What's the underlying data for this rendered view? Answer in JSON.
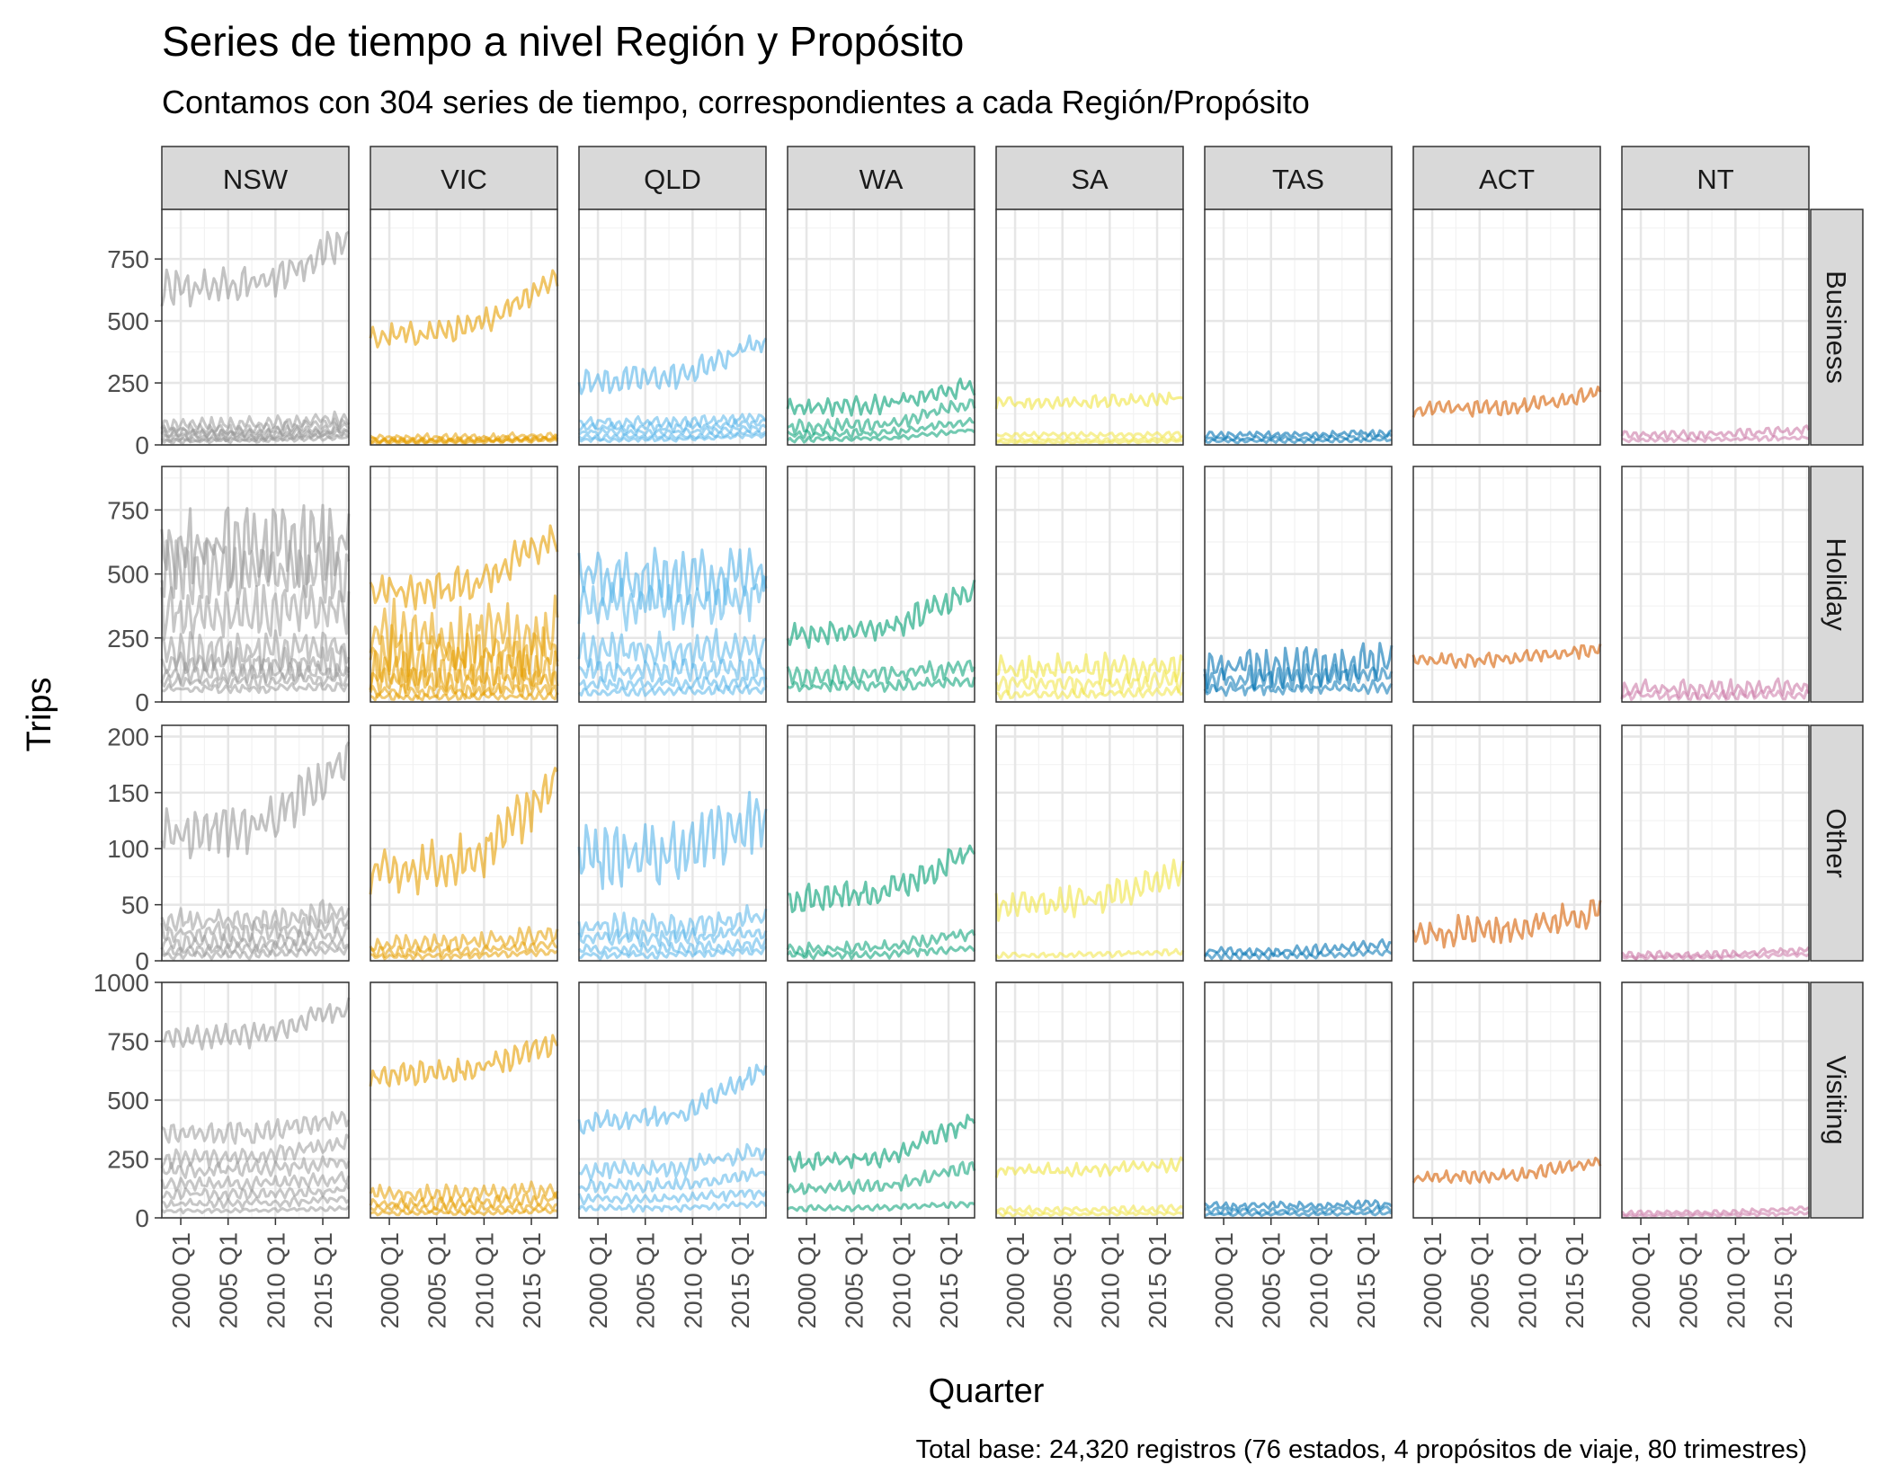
{
  "chart_data": {
    "type": "line",
    "title": "Series de tiempo a nivel Región y Propósito",
    "subtitle": "Contamos con 304 series de tiempo, correspondientes a cada Región/Propósito",
    "caption": "Total base: 24,320 registros (76 estados, 4 propósitos de viaje, 80 trimestres)",
    "xlabel": "Quarter",
    "ylabel": "Trips",
    "x_ticks": [
      "2000 Q1",
      "2005 Q1",
      "2010 Q1",
      "2015 Q1"
    ],
    "x_tick_years": [
      2000,
      2005,
      2010,
      2015
    ],
    "xlim": [
      1998.0,
      2017.75
    ],
    "facet_columns": [
      "NSW",
      "VIC",
      "QLD",
      "WA",
      "SA",
      "TAS",
      "ACT",
      "NT"
    ],
    "facet_rows": [
      {
        "name": "Business",
        "ylim": [
          0,
          950
        ],
        "ticks": [
          0,
          250,
          500,
          750
        ],
        "tick_labels": [
          "0",
          "250",
          "500",
          "750"
        ]
      },
      {
        "name": "Holiday",
        "ylim": [
          0,
          920
        ],
        "ticks": [
          0,
          250,
          500,
          750
        ],
        "tick_labels": [
          "0",
          "250",
          "500",
          "750"
        ]
      },
      {
        "name": "Other",
        "ylim": [
          0,
          210
        ],
        "ticks": [
          0,
          50,
          100,
          150,
          200
        ],
        "tick_labels": [
          "0",
          "50",
          "100",
          "150",
          "200"
        ]
      },
      {
        "name": "Visiting",
        "ylim": [
          0,
          1000
        ],
        "ticks": [
          0,
          250,
          500,
          750,
          1000
        ],
        "tick_labels": [
          "0",
          "250",
          "500",
          "750",
          "1000"
        ]
      }
    ],
    "colors": {
      "NSW": "#999999",
      "VIC": "#E69F00",
      "QLD": "#56B4E9",
      "WA": "#009E73",
      "SA": "#F0E442",
      "TAS": "#0072B2",
      "ACT": "#D55E00",
      "NT": "#CC79A7"
    },
    "grid": true,
    "legend": "none",
    "series_summary_note": "Approximate level profiles per facet: each entry is one regional series [start level, end level, seasonal amplitude]",
    "panels": {
      "Business": {
        "NSW": [
          [
            620,
            830,
            90
          ],
          [
            80,
            110,
            30
          ],
          [
            60,
            90,
            25
          ],
          [
            50,
            70,
            20
          ],
          [
            40,
            60,
            20
          ],
          [
            30,
            50,
            15
          ],
          [
            20,
            40,
            10
          ],
          [
            15,
            30,
            10
          ]
        ],
        "VIC": [
          [
            430,
            680,
            55
          ],
          [
            30,
            40,
            15
          ],
          [
            20,
            30,
            12
          ],
          [
            15,
            25,
            10
          ],
          [
            10,
            20,
            8
          ]
        ],
        "QLD": [
          [
            250,
            420,
            60
          ],
          [
            90,
            110,
            25
          ],
          [
            70,
            90,
            20
          ],
          [
            50,
            70,
            15
          ],
          [
            30,
            50,
            12
          ],
          [
            20,
            40,
            10
          ]
        ],
        "WA": [
          [
            150,
            240,
            40
          ],
          [
            70,
            170,
            30
          ],
          [
            40,
            100,
            20
          ],
          [
            20,
            60,
            12
          ]
        ],
        "SA": [
          [
            170,
            190,
            30
          ],
          [
            40,
            45,
            12
          ],
          [
            20,
            25,
            8
          ],
          [
            10,
            15,
            6
          ]
        ],
        "TAS": [
          [
            40,
            50,
            15
          ],
          [
            25,
            35,
            10
          ],
          [
            15,
            20,
            8
          ]
        ],
        "ACT": [
          [
            140,
            210,
            35
          ]
        ],
        "NT": [
          [
            40,
            60,
            20
          ],
          [
            20,
            30,
            10
          ]
        ]
      },
      "Holiday": {
        "NSW": [
          [
            600,
            620,
            180
          ],
          [
            500,
            520,
            150
          ],
          [
            350,
            360,
            120
          ],
          [
            200,
            210,
            80
          ],
          [
            150,
            160,
            60
          ],
          [
            110,
            120,
            40
          ],
          [
            80,
            90,
            30
          ],
          [
            50,
            60,
            20
          ]
        ],
        "VIC": [
          [
            420,
            650,
            80
          ],
          [
            250,
            260,
            150
          ],
          [
            180,
            190,
            120
          ],
          [
            120,
            130,
            90
          ],
          [
            80,
            90,
            60
          ],
          [
            40,
            50,
            30
          ],
          [
            20,
            25,
            15
          ]
        ],
        "QLD": [
          [
            480,
            500,
            120
          ],
          [
            380,
            420,
            100
          ],
          [
            200,
            220,
            70
          ],
          [
            120,
            130,
            50
          ],
          [
            70,
            80,
            30
          ],
          [
            40,
            50,
            20
          ]
        ],
        "WA": [
          [
            260,
            440,
            60
          ],
          [
            100,
            140,
            40
          ],
          [
            60,
            80,
            25
          ]
        ],
        "SA": [
          [
            130,
            140,
            60
          ],
          [
            70,
            80,
            40
          ],
          [
            30,
            40,
            20
          ]
        ],
        "TAS": [
          [
            130,
            160,
            90
          ],
          [
            90,
            110,
            50
          ],
          [
            50,
            60,
            25
          ]
        ],
        "ACT": [
          [
            160,
            210,
            30
          ]
        ],
        "NT": [
          [
            50,
            55,
            40
          ],
          [
            25,
            30,
            20
          ]
        ]
      },
      "Other": {
        "NSW": [
          [
            110,
            180,
            25
          ],
          [
            35,
            45,
            12
          ],
          [
            25,
            35,
            10
          ],
          [
            15,
            25,
            8
          ],
          [
            10,
            15,
            6
          ],
          [
            5,
            10,
            4
          ]
        ],
        "VIC": [
          [
            75,
            160,
            25
          ],
          [
            15,
            25,
            8
          ],
          [
            8,
            15,
            5
          ],
          [
            4,
            8,
            3
          ]
        ],
        "QLD": [
          [
            90,
            130,
            35
          ],
          [
            30,
            40,
            12
          ],
          [
            20,
            25,
            8
          ],
          [
            10,
            15,
            6
          ],
          [
            5,
            10,
            4
          ]
        ],
        "WA": [
          [
            55,
            100,
            15
          ],
          [
            10,
            25,
            6
          ],
          [
            5,
            12,
            4
          ]
        ],
        "SA": [
          [
            50,
            80,
            15
          ],
          [
            5,
            8,
            3
          ]
        ],
        "TAS": [
          [
            8,
            15,
            5
          ],
          [
            4,
            8,
            3
          ]
        ],
        "ACT": [
          [
            25,
            45,
            15
          ]
        ],
        "NT": [
          [
            5,
            10,
            4
          ],
          [
            3,
            6,
            2
          ]
        ]
      },
      "Visiting": {
        "NSW": [
          [
            760,
            890,
            60
          ],
          [
            350,
            430,
            50
          ],
          [
            250,
            320,
            40
          ],
          [
            200,
            240,
            35
          ],
          [
            140,
            170,
            30
          ],
          [
            100,
            120,
            25
          ],
          [
            60,
            80,
            20
          ],
          [
            30,
            40,
            10
          ]
        ],
        "VIC": [
          [
            600,
            750,
            60
          ],
          [
            100,
            120,
            40
          ],
          [
            60,
            80,
            30
          ],
          [
            40,
            50,
            20
          ],
          [
            20,
            30,
            10
          ]
        ],
        "QLD": [
          [
            400,
            640,
            50
          ],
          [
            200,
            290,
            40
          ],
          [
            130,
            190,
            30
          ],
          [
            80,
            110,
            25
          ],
          [
            40,
            60,
            15
          ]
        ],
        "WA": [
          [
            230,
            420,
            45
          ],
          [
            120,
            220,
            30
          ],
          [
            40,
            60,
            15
          ]
        ],
        "SA": [
          [
            200,
            230,
            30
          ],
          [
            35,
            40,
            15
          ],
          [
            15,
            20,
            8
          ]
        ],
        "TAS": [
          [
            50,
            60,
            20
          ],
          [
            30,
            40,
            12
          ],
          [
            15,
            20,
            8
          ]
        ],
        "ACT": [
          [
            170,
            240,
            30
          ]
        ],
        "NT": [
          [
            20,
            40,
            12
          ],
          [
            10,
            20,
            8
          ]
        ]
      }
    }
  }
}
